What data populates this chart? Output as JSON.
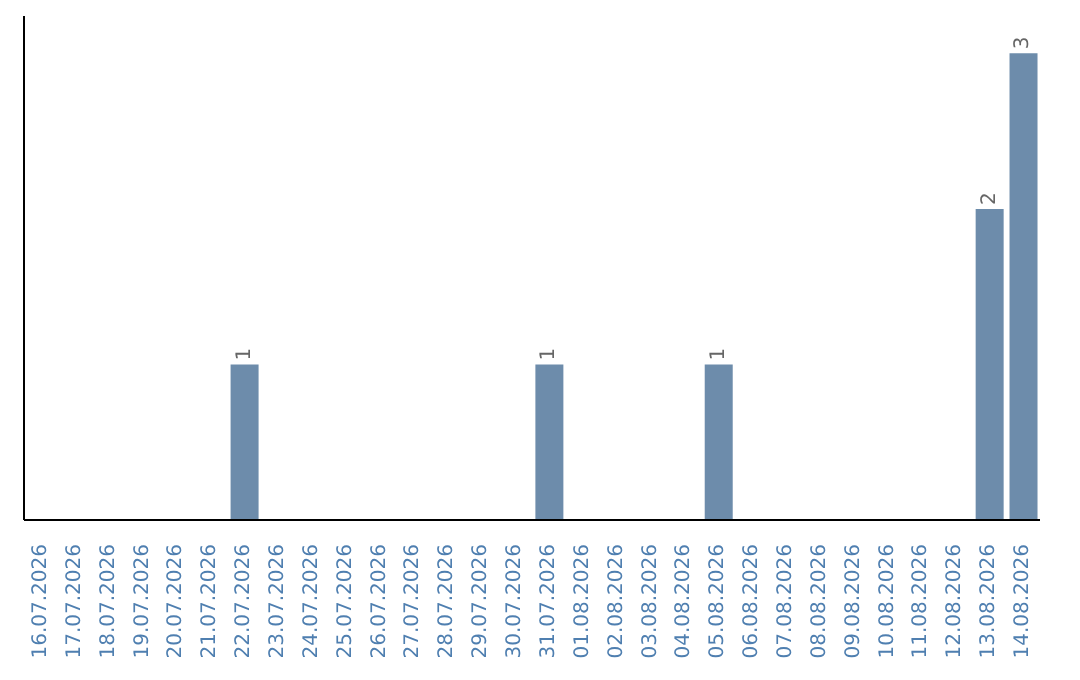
{
  "chart_data": {
    "type": "bar",
    "categories": [
      "16.07.2026",
      "17.07.2026",
      "18.07.2026",
      "19.07.2026",
      "20.07.2026",
      "21.07.2026",
      "22.07.2026",
      "23.07.2026",
      "24.07.2026",
      "25.07.2026",
      "26.07.2026",
      "27.07.2026",
      "28.07.2026",
      "29.07.2026",
      "30.07.2026",
      "31.07.2026",
      "01.08.2026",
      "02.08.2026",
      "03.08.2026",
      "04.08.2026",
      "05.08.2026",
      "06.08.2026",
      "07.08.2026",
      "08.08.2026",
      "09.08.2026",
      "10.08.2026",
      "11.08.2026",
      "12.08.2026",
      "13.08.2026",
      "14.08.2026"
    ],
    "values": [
      0,
      0,
      0,
      0,
      0,
      0,
      1,
      0,
      0,
      0,
      0,
      0,
      0,
      0,
      0,
      1,
      0,
      0,
      0,
      0,
      1,
      0,
      0,
      0,
      0,
      0,
      0,
      0,
      2,
      3
    ],
    "value_labels": [
      null,
      null,
      null,
      null,
      null,
      null,
      "1",
      null,
      null,
      null,
      null,
      null,
      null,
      null,
      null,
      "1",
      null,
      null,
      null,
      null,
      "1",
      null,
      null,
      null,
      null,
      null,
      null,
      null,
      "2",
      "3"
    ],
    "color": "#6d8cab",
    "grid": false,
    "legend": false
  }
}
